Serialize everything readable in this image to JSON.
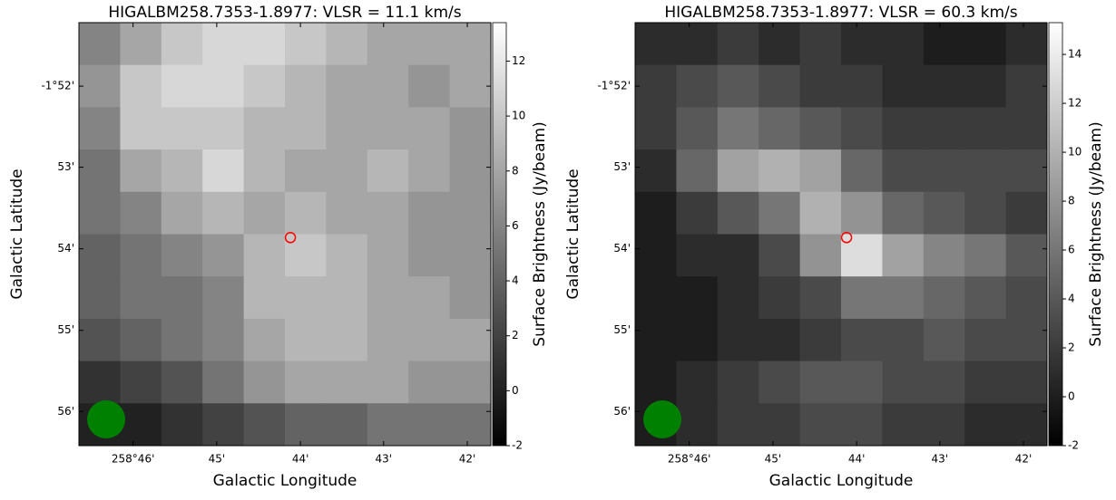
{
  "chart_data": [
    {
      "type": "heatmap",
      "title": "HIGALBM258.7353-1.8977: VLSR = 11.1 km/s",
      "xlabel": "Galactic Longitude",
      "ylabel": "Galactic Latitude",
      "colorbar_label": "Surface Brightness (Jy/beam)",
      "cmap": "gray",
      "xlim": [
        258.7775,
        258.6953
      ],
      "ylim": [
        -1.9403,
        -1.8537
      ],
      "xticks": [
        {
          "value": 258.7667,
          "label": "258°46'"
        },
        {
          "value": 258.75,
          "label": "45'"
        },
        {
          "value": 258.7333,
          "label": "44'"
        },
        {
          "value": 258.7167,
          "label": "43'"
        },
        {
          "value": 258.7,
          "label": "42'"
        }
      ],
      "yticks": [
        {
          "value": -1.8667,
          "label": "-1°52'"
        },
        {
          "value": -1.8833,
          "label": "53'"
        },
        {
          "value": -1.9,
          "label": "54'"
        },
        {
          "value": -1.9167,
          "label": "55'"
        },
        {
          "value": -1.9333,
          "label": "56'"
        }
      ],
      "clim": [
        -2,
        13.4
      ],
      "cticks": [
        -2,
        0,
        2,
        4,
        6,
        8,
        10,
        12
      ],
      "marker": {
        "x": 258.7353,
        "y": -1.8977,
        "color": "#ff0000"
      },
      "z": [
        [
          6,
          8,
          10,
          11,
          11,
          10,
          9,
          8,
          8,
          8
        ],
        [
          7,
          10,
          11,
          11,
          10,
          9,
          8,
          8,
          7,
          8
        ],
        [
          6,
          10,
          10,
          10,
          9,
          9,
          8,
          8,
          8,
          7
        ],
        [
          5,
          8,
          9,
          11,
          9,
          8,
          8,
          9,
          8,
          7
        ],
        [
          5,
          6,
          8,
          9,
          8,
          9,
          8,
          8,
          7,
          7
        ],
        [
          4,
          5,
          6,
          7,
          9,
          10,
          9,
          8,
          7,
          7
        ],
        [
          4,
          5,
          5,
          6,
          9,
          9,
          9,
          8,
          8,
          7
        ],
        [
          3,
          4,
          5,
          6,
          8,
          9,
          9,
          8,
          8,
          8
        ],
        [
          1,
          2,
          3,
          5,
          7,
          8,
          8,
          8,
          7,
          7
        ],
        [
          0,
          0,
          1,
          2,
          3,
          4,
          4,
          5,
          5,
          5
        ]
      ]
    },
    {
      "type": "heatmap",
      "title": "HIGALBM258.7353-1.8977: VLSR = 60.3 km/s",
      "xlabel": "Galactic Longitude",
      "ylabel": "Galactic Latitude",
      "colorbar_label": "Surface Brightness (Jy/beam)",
      "cmap": "gray",
      "xlim": [
        258.7775,
        258.6953
      ],
      "ylim": [
        -1.9403,
        -1.8537
      ],
      "xticks": [
        {
          "value": 258.7667,
          "label": "258°46'"
        },
        {
          "value": 258.75,
          "label": "45'"
        },
        {
          "value": 258.7333,
          "label": "44'"
        },
        {
          "value": 258.7167,
          "label": "43'"
        },
        {
          "value": 258.7,
          "label": "42'"
        }
      ],
      "yticks": [
        {
          "value": -1.8667,
          "label": "-1°52'"
        },
        {
          "value": -1.8833,
          "label": "53'"
        },
        {
          "value": -1.9,
          "label": "54'"
        },
        {
          "value": -1.9167,
          "label": "55'"
        },
        {
          "value": -1.9333,
          "label": "56'"
        }
      ],
      "clim": [
        -2,
        15.3
      ],
      "cticks": [
        -2,
        0,
        2,
        4,
        6,
        8,
        10,
        12,
        14
      ],
      "marker": {
        "x": 258.7353,
        "y": -1.8977,
        "color": "#ff0000"
      },
      "z": [
        [
          1,
          1,
          2,
          1,
          2,
          1,
          1,
          0,
          0,
          1
        ],
        [
          2,
          3,
          4,
          3,
          2,
          2,
          1,
          1,
          1,
          2
        ],
        [
          2,
          4,
          6,
          5,
          4,
          3,
          2,
          2,
          2,
          2
        ],
        [
          1,
          5,
          9,
          10,
          9,
          5,
          3,
          3,
          3,
          3
        ],
        [
          0,
          2,
          4,
          6,
          10,
          8,
          5,
          4,
          3,
          2
        ],
        [
          0,
          1,
          1,
          3,
          8,
          13,
          9,
          7,
          6,
          4
        ],
        [
          0,
          0,
          1,
          2,
          3,
          6,
          6,
          5,
          4,
          3
        ],
        [
          0,
          0,
          1,
          1,
          2,
          3,
          3,
          4,
          3,
          3
        ],
        [
          0,
          1,
          2,
          3,
          4,
          4,
          3,
          3,
          2,
          2
        ],
        [
          0,
          1,
          2,
          2,
          3,
          3,
          2,
          2,
          1,
          1
        ]
      ]
    }
  ]
}
